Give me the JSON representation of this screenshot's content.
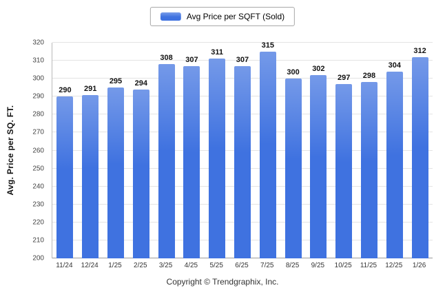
{
  "legend": {
    "label": "Avg Price per SQFT (Sold)",
    "swatch_color": "#3f72e0"
  },
  "footer": "Copyright © Trendgraphix, Inc.",
  "chart_data": {
    "type": "bar",
    "categories": [
      "11/24",
      "12/24",
      "1/25",
      "2/25",
      "3/25",
      "4/25",
      "5/25",
      "6/25",
      "7/25",
      "8/25",
      "9/25",
      "10/25",
      "11/25",
      "12/25",
      "1/26"
    ],
    "values": [
      290,
      291,
      295,
      294,
      308,
      307,
      311,
      307,
      315,
      300,
      302,
      297,
      298,
      304,
      312
    ],
    "title": "",
    "xlabel": "",
    "ylabel": "Avg. Price per SQ. FT.",
    "ylim": [
      200,
      320
    ],
    "ytick_step": 10,
    "grid": true,
    "legend_position": "top",
    "bar_color": "#3f72e0"
  }
}
